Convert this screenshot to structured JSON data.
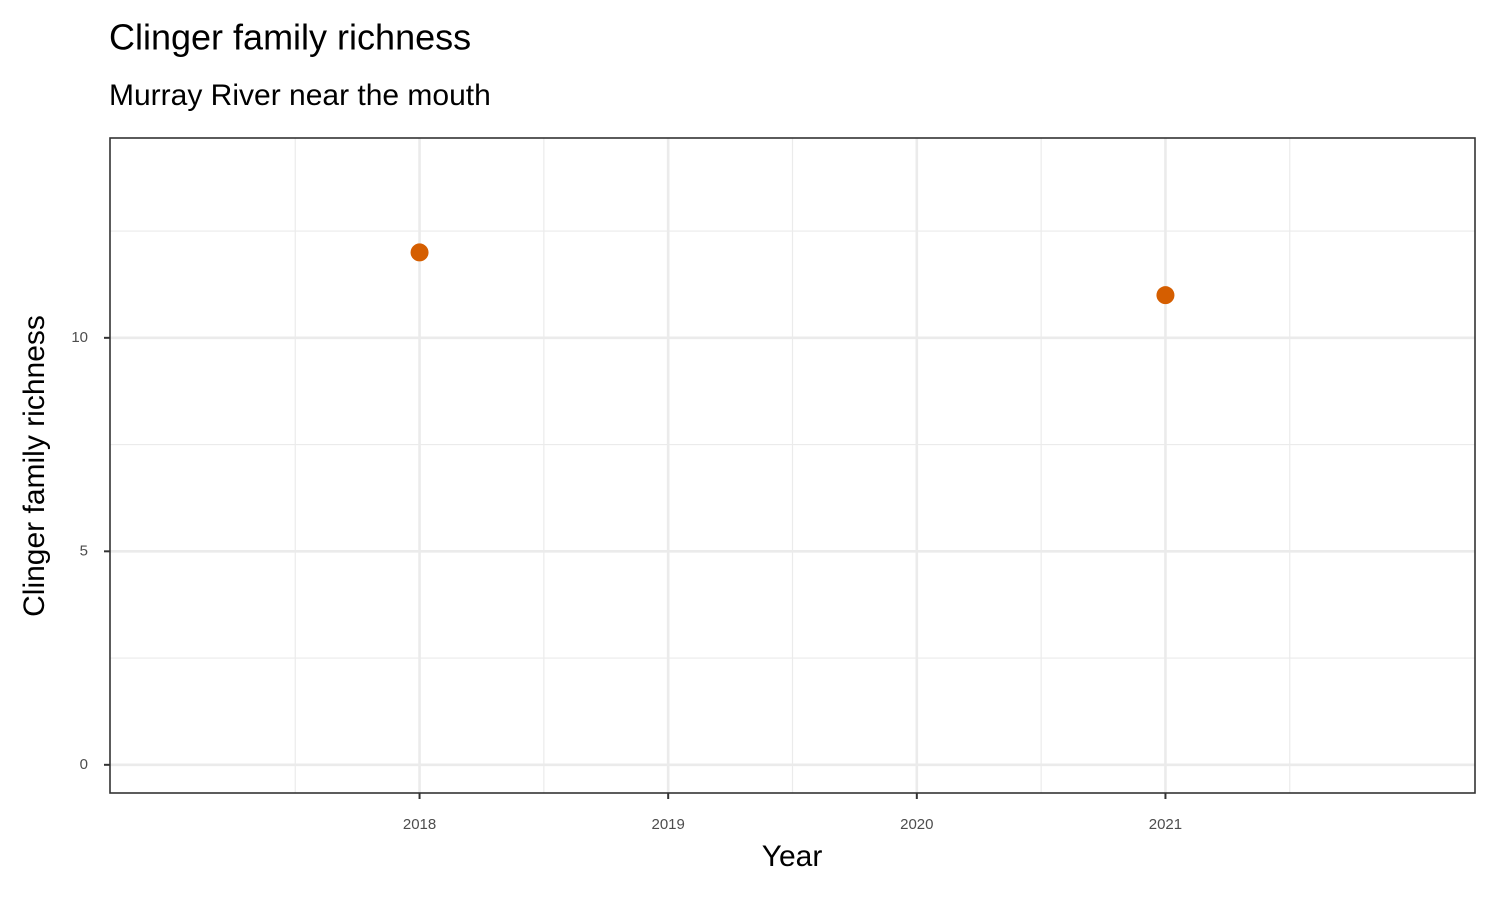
{
  "chart_data": {
    "type": "scatter",
    "title": "Clinger family richness",
    "subtitle": "Murray River near the mouth",
    "x_label": "Year",
    "y_label": "Clinger family richness",
    "x": [
      2018,
      2021
    ],
    "values": [
      12,
      11
    ],
    "color": "#d55e00",
    "xlim": [
      2016.755,
      2022.245
    ],
    "xticks": [
      2018,
      2019,
      2020,
      2021
    ],
    "ylim": [
      -0.66,
      14.68
    ],
    "yticks": [
      0,
      5,
      10
    ],
    "grid": true
  }
}
